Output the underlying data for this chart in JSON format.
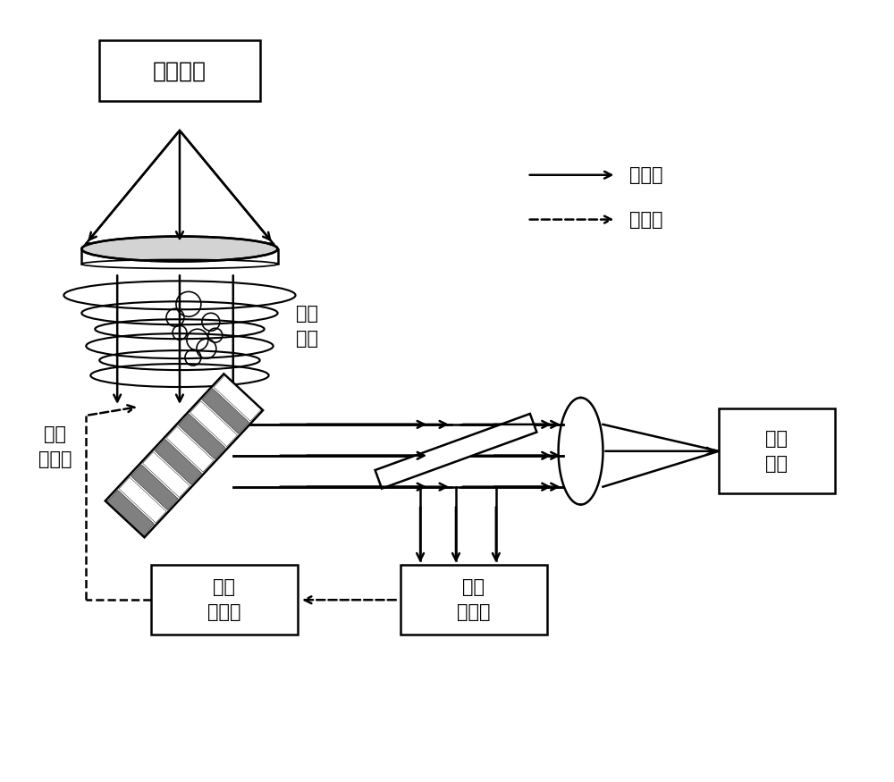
{
  "bg_color": "#ffffff",
  "label_transmitter": "光发射机",
  "label_turbulence": "大气\n湍流",
  "label_corrector": "波前\n矫正器",
  "label_controller": "波前\n控制器",
  "label_detector": "波前\n探测器",
  "label_receiver": "光接\n收机",
  "legend_optical": "光信号",
  "legend_electrical": "电信号",
  "font_size": 15
}
